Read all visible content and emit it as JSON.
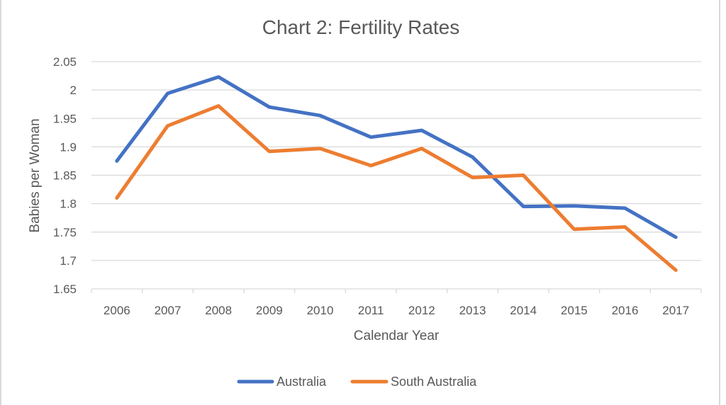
{
  "chart_data": {
    "type": "line",
    "title": "Chart 2: Fertility Rates",
    "xlabel": "Calendar Year",
    "ylabel": "Babies per Woman",
    "categories": [
      "2006",
      "2007",
      "2008",
      "2009",
      "2010",
      "2011",
      "2012",
      "2013",
      "2014",
      "2015",
      "2016",
      "2017"
    ],
    "ylim": [
      1.65,
      2.05
    ],
    "yticks": [
      "1.65",
      "1.7",
      "1.75",
      "1.8",
      "1.85",
      "1.9",
      "1.95",
      "2",
      "2.05"
    ],
    "grid": true,
    "legend_position": "bottom",
    "series": [
      {
        "name": "Australia",
        "color": "#4472c4",
        "values": [
          1.875,
          1.994,
          2.023,
          1.97,
          1.955,
          1.917,
          1.929,
          1.882,
          1.795,
          1.796,
          1.792,
          1.741
        ]
      },
      {
        "name": "South Australia",
        "color": "#ed7d31",
        "values": [
          1.81,
          1.937,
          1.972,
          1.892,
          1.897,
          1.867,
          1.897,
          1.846,
          1.85,
          1.755,
          1.759,
          1.683
        ]
      }
    ]
  }
}
